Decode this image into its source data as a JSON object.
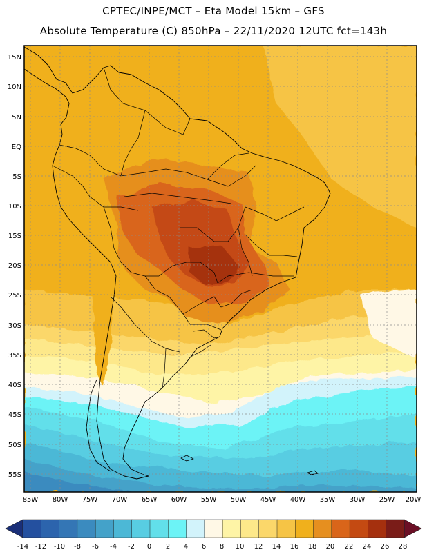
{
  "header": {
    "line1": "CPTEC/INPE/MCT –  Eta Model 15km – GFS",
    "line2": "Absolute Temperature (C) 850hPa – 22/11/2020 12UTC fct=143h"
  },
  "map": {
    "lat_labels": [
      "15N",
      "10N",
      "5N",
      "EQ",
      "5S",
      "10S",
      "15S",
      "20S",
      "25S",
      "30S",
      "35S",
      "40S",
      "45S",
      "50S",
      "55S"
    ],
    "lon_labels": [
      "85W",
      "80W",
      "75W",
      "70W",
      "65W",
      "60W",
      "55W",
      "50W",
      "45W",
      "40W",
      "35W",
      "30W",
      "25W",
      "20W"
    ]
  },
  "legend": {
    "bins": [
      {
        "value": -14,
        "color": "#1f3d8c"
      },
      {
        "value": -12,
        "color": "#24509f"
      },
      {
        "value": -10,
        "color": "#2c64ad"
      },
      {
        "value": -8,
        "color": "#3476b5"
      },
      {
        "value": -6,
        "color": "#3b8bbf"
      },
      {
        "value": -4,
        "color": "#44a2c9"
      },
      {
        "value": -2,
        "color": "#4cb8d6"
      },
      {
        "value": 0,
        "color": "#58cde2"
      },
      {
        "value": 2,
        "color": "#62dfea"
      },
      {
        "value": 4,
        "color": "#6cf3f6"
      },
      {
        "value": 6,
        "color": "#d2f3fb"
      },
      {
        "value": 8,
        "color": "#fff8e6"
      },
      {
        "value": 10,
        "color": "#fef4a6"
      },
      {
        "value": 12,
        "color": "#fde88a"
      },
      {
        "value": 14,
        "color": "#fbd76a"
      },
      {
        "value": 16,
        "color": "#f6c445"
      },
      {
        "value": 18,
        "color": "#f0b01c"
      },
      {
        "value": 20,
        "color": "#e68f1f"
      },
      {
        "value": 22,
        "color": "#d9651a"
      },
      {
        "value": 24,
        "color": "#c44a12"
      },
      {
        "value": 26,
        "color": "#a5300e"
      },
      {
        "value": 28,
        "color": "#7a1c18"
      }
    ],
    "tick_labels": [
      "-14",
      "-12",
      "-10",
      "-8",
      "-6",
      "-4",
      "-2",
      "0",
      "2",
      "4",
      "6",
      "8",
      "10",
      "12",
      "14",
      "16",
      "18",
      "20",
      "22",
      "24",
      "26",
      "28"
    ],
    "under_color": "#1a2f78",
    "over_color": "#6b0f25"
  }
}
